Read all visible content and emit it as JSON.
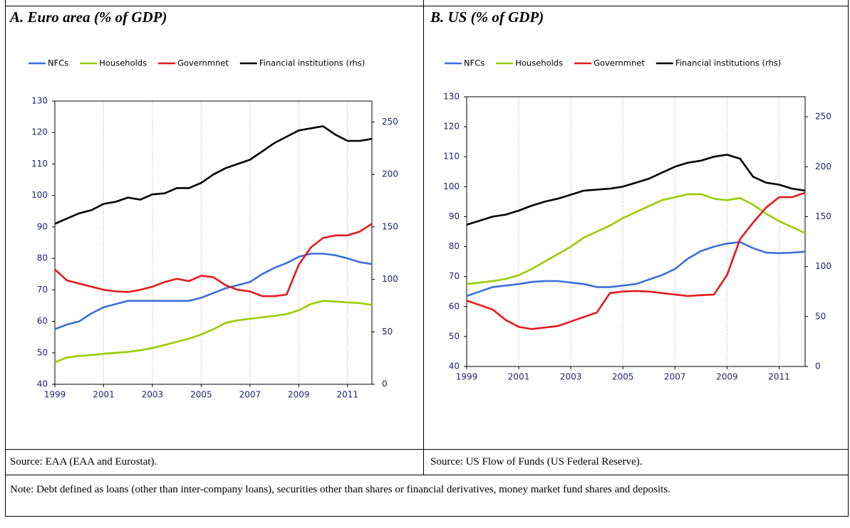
{
  "chart_data": [
    {
      "type": "line",
      "title": "A. Euro area (% of GDP)",
      "x": [
        1999,
        1999.5,
        2000,
        2000.5,
        2001,
        2001.5,
        2002,
        2002.5,
        2003,
        2003.5,
        2004,
        2004.5,
        2005,
        2005.5,
        2006,
        2006.5,
        2007,
        2007.5,
        2008,
        2008.5,
        2009,
        2009.5,
        2010,
        2010.5,
        2011,
        2011.5,
        2012
      ],
      "xlim": [
        1999,
        2012
      ],
      "xticks": [
        1999,
        2001,
        2003,
        2005,
        2007,
        2009,
        2011
      ],
      "ylim": [
        40,
        130
      ],
      "yticks": [
        40,
        50,
        60,
        70,
        80,
        90,
        100,
        110,
        120,
        130
      ],
      "y2lim": [
        0,
        270
      ],
      "y2ticks": [
        0,
        50,
        100,
        150,
        200,
        250
      ],
      "grid": "x",
      "series": [
        {
          "name": "NFCs",
          "color": "#3b6fd8",
          "values": [
            57.5,
            59,
            60,
            62.5,
            64.5,
            65.5,
            66.5,
            66.5,
            66.5,
            66.5,
            66.5,
            66.5,
            67.5,
            69,
            70.5,
            71.5,
            72.5,
            75,
            77,
            78.5,
            80.5,
            81.5,
            81.5,
            81,
            80,
            78.8,
            78.2
          ]
        },
        {
          "name": "Households",
          "color": "#99cc00",
          "values": [
            47,
            48.5,
            49,
            49.3,
            49.7,
            50,
            50.3,
            50.8,
            51.5,
            52.5,
            53.5,
            54.5,
            55.8,
            57.5,
            59.5,
            60.3,
            60.8,
            61.3,
            61.7,
            62.3,
            63.5,
            65.5,
            66.5,
            66.3,
            66,
            65.8,
            65.2
          ]
        },
        {
          "name": "Governmnet",
          "color": "#e41a1c",
          "values": [
            76.5,
            73,
            72,
            71,
            70,
            69.5,
            69.3,
            70,
            71,
            72.5,
            73.5,
            72.8,
            74.5,
            74,
            71.5,
            70,
            69.5,
            68,
            68,
            68.5,
            78,
            83.5,
            86.5,
            87.3,
            87.3,
            88.5,
            91
          ]
        },
        {
          "name": "Financial institutions (rhs)",
          "color": "#000000",
          "axis": "y2",
          "values": [
            153,
            158,
            163,
            166,
            172,
            174,
            178,
            176,
            181,
            182,
            187,
            187,
            192,
            200,
            206,
            210,
            214,
            222,
            230,
            236,
            242,
            244,
            246,
            238,
            232,
            232,
            234
          ]
        }
      ]
    },
    {
      "type": "line",
      "title": "B. US (% of GDP)",
      "x": [
        1999,
        1999.5,
        2000,
        2000.5,
        2001,
        2001.5,
        2002,
        2002.5,
        2003,
        2003.5,
        2004,
        2004.5,
        2005,
        2005.5,
        2006,
        2006.5,
        2007,
        2007.5,
        2008,
        2008.5,
        2009,
        2009.5,
        2010,
        2010.5,
        2011,
        2011.5,
        2012
      ],
      "xlim": [
        1999,
        2012
      ],
      "xticks": [
        1999,
        2001,
        2003,
        2005,
        2007,
        2009,
        2011
      ],
      "ylim": [
        40,
        130
      ],
      "yticks": [
        40,
        50,
        60,
        70,
        80,
        90,
        100,
        110,
        120,
        130
      ],
      "y2lim": [
        0,
        270
      ],
      "y2ticks": [
        0,
        50,
        100,
        150,
        200,
        250
      ],
      "grid": "x",
      "series": [
        {
          "name": "NFCs",
          "color": "#3b6fd8",
          "values": [
            63.5,
            65,
            66.5,
            67,
            67.5,
            68.2,
            68.5,
            68.5,
            68,
            67.5,
            66.5,
            66.5,
            67,
            67.5,
            69,
            70.5,
            72.5,
            76,
            78.5,
            80,
            81,
            81.5,
            79.5,
            78,
            77.8,
            78,
            78.3
          ]
        },
        {
          "name": "Households",
          "color": "#99cc00",
          "values": [
            67.5,
            68,
            68.5,
            69.2,
            70.5,
            72.5,
            75,
            77.5,
            80,
            83,
            85,
            87,
            89.5,
            91.5,
            93.5,
            95.5,
            96.5,
            97.5,
            97.5,
            96,
            95.5,
            96.2,
            94,
            91,
            88.5,
            86.5,
            84.5
          ]
        },
        {
          "name": "Governmnet",
          "color": "#e41a1c",
          "values": [
            62,
            60.5,
            59,
            55.5,
            53.2,
            52.5,
            53,
            53.5,
            55,
            56.5,
            58,
            64.5,
            65,
            65.2,
            65,
            64.5,
            64,
            63.5,
            63.8,
            64,
            70.5,
            82.5,
            88,
            93,
            96.5,
            96.5,
            98
          ]
        },
        {
          "name": "Financial institutions (rhs)",
          "color": "#000000",
          "axis": "y2",
          "values": [
            142,
            146,
            150,
            152,
            156,
            161,
            165,
            168,
            172,
            176,
            177,
            178,
            180,
            184,
            188,
            194,
            200,
            204,
            206,
            210,
            212,
            208,
            190,
            184,
            182,
            178,
            176
          ]
        }
      ]
    }
  ],
  "sources": [
    "Source: EAA (EAA and Eurostat).",
    "Source: US Flow of Funds (US Federal Reserve)."
  ],
  "note": "Note: Debt defined as loans (other than inter-company loans), securities other than shares or financial derivatives, money market fund shares and deposits."
}
